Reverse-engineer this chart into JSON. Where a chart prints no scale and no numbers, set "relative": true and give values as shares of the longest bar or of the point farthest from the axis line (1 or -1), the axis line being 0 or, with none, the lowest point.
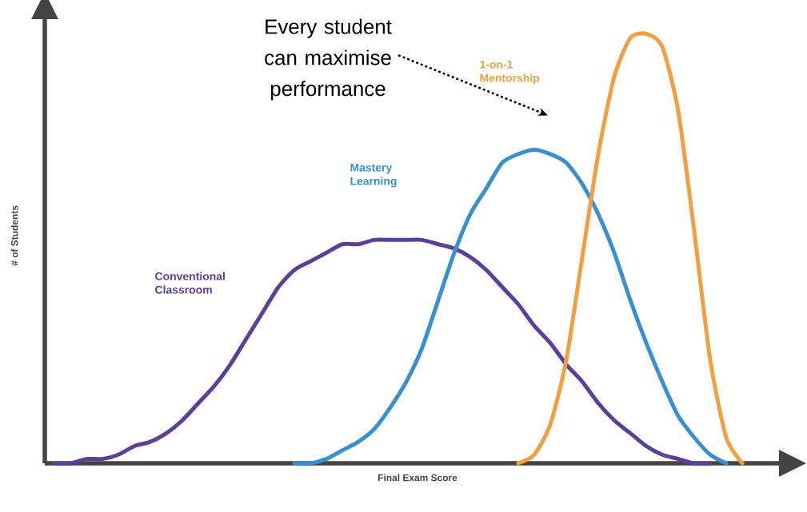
{
  "chart_data": {
    "type": "line",
    "relative": true,
    "xlabel": "Final Exam Score",
    "ylabel": "# of Students",
    "categories": [
      null,
      null,
      null,
      null,
      null,
      null,
      null,
      null,
      null,
      null,
      null,
      null,
      null,
      null,
      null,
      null,
      null,
      null,
      null,
      null,
      null,
      null,
      null,
      null,
      null,
      null,
      null,
      null,
      null,
      null,
      null,
      null,
      null,
      null,
      null,
      null,
      null,
      null,
      null,
      null,
      null,
      null,
      null,
      null,
      null,
      null
    ],
    "series": [
      {
        "name": "Conventional Classroom",
        "color": "#5b3f99",
        "values": [
          0,
          0,
          0.01,
          0.01,
          0.02,
          0.04,
          0.05,
          0.07,
          0.1,
          0.14,
          0.18,
          0.23,
          0.29,
          0.35,
          0.41,
          0.45,
          0.47,
          0.49,
          0.51,
          0.51,
          0.52,
          0.52,
          0.52,
          0.52,
          0.51,
          0.5,
          0.48,
          0.45,
          0.41,
          0.37,
          0.32,
          0.28,
          0.23,
          0.19,
          0.14,
          0.1,
          0.07,
          0.04,
          0.02,
          0.01,
          0,
          0,
          null,
          null,
          null,
          null
        ]
      },
      {
        "name": "Mastery Learning",
        "color": "#3a8fd0",
        "values": [
          null,
          null,
          null,
          null,
          null,
          null,
          null,
          null,
          null,
          null,
          null,
          null,
          null,
          null,
          null,
          0,
          0,
          0.01,
          0.03,
          0.05,
          0.08,
          0.13,
          0.19,
          0.27,
          0.38,
          0.49,
          0.58,
          0.64,
          0.7,
          0.72,
          0.73,
          0.72,
          0.7,
          0.65,
          0.58,
          0.49,
          0.38,
          0.28,
          0.19,
          0.11,
          0.06,
          0.02,
          0,
          null,
          null,
          null
        ]
      },
      {
        "name": "1-on-1 Mentorship",
        "color": "#f0a040",
        "values": [
          null,
          null,
          null,
          null,
          null,
          null,
          null,
          null,
          null,
          null,
          null,
          null,
          null,
          null,
          null,
          null,
          null,
          null,
          null,
          null,
          null,
          null,
          null,
          null,
          null,
          null,
          null,
          null,
          null,
          0,
          0.02,
          0.09,
          0.24,
          0.48,
          0.72,
          0.9,
          0.99,
          1,
          0.97,
          0.82,
          0.54,
          0.24,
          0.06,
          0,
          null,
          null
        ]
      }
    ],
    "annotations": [
      "Every student can maximise performance"
    ]
  }
}
